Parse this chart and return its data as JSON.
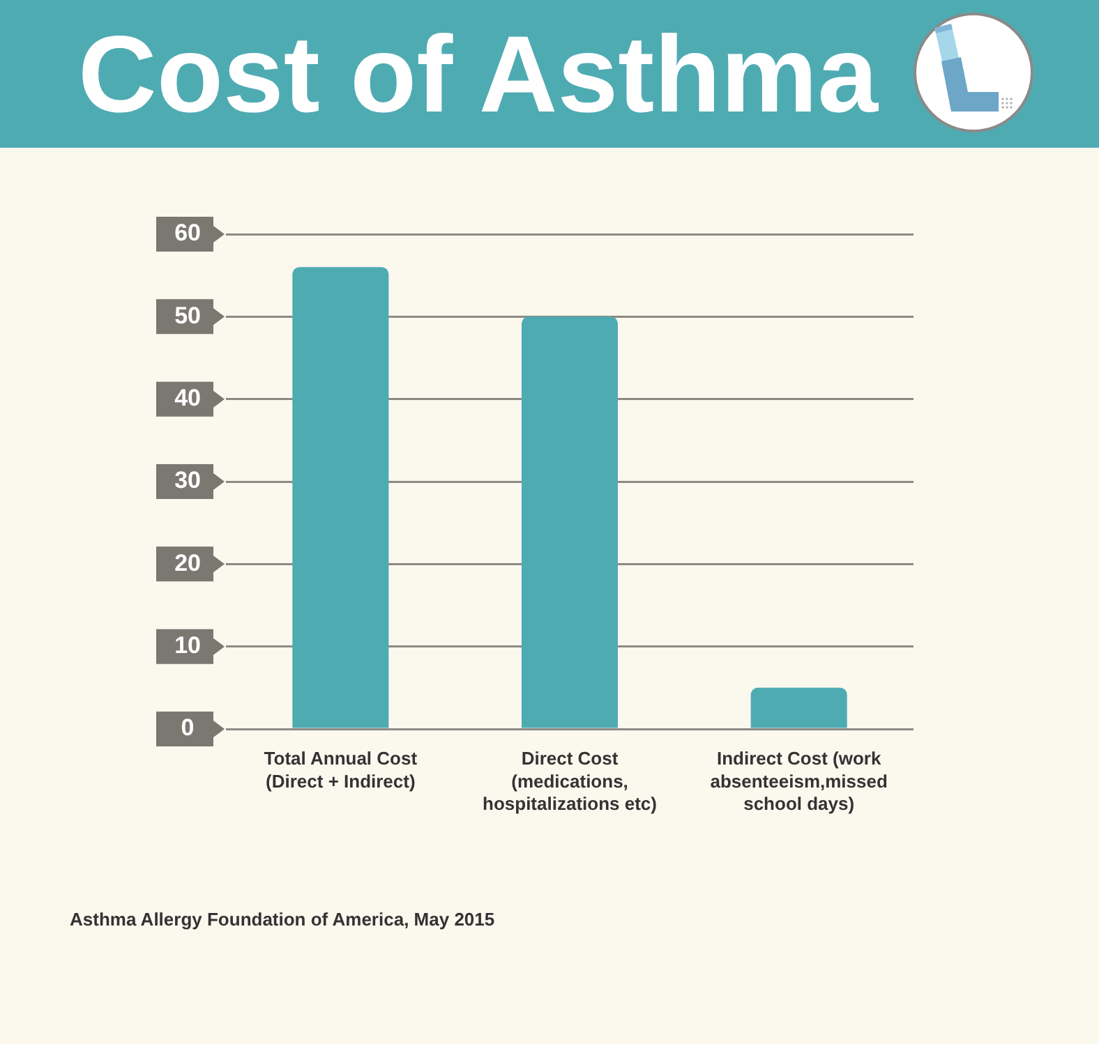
{
  "chart_data": {
    "type": "bar",
    "title": "Cost of Asthma",
    "categories": [
      "Total Annual Cost (Direct + Indirect)",
      "Direct Cost (medications, hospitalizations etc)",
      "Indirect Cost (work absenteeism,missed school days)"
    ],
    "values": [
      56,
      50,
      5
    ],
    "color": "#4fabb2",
    "ylim": [
      0,
      60
    ],
    "yticks": [
      0,
      10,
      20,
      30,
      40,
      50,
      60
    ],
    "grid": "y",
    "annotations": [
      "Asthma Allergy Foundation of America, May 2015"
    ]
  }
}
